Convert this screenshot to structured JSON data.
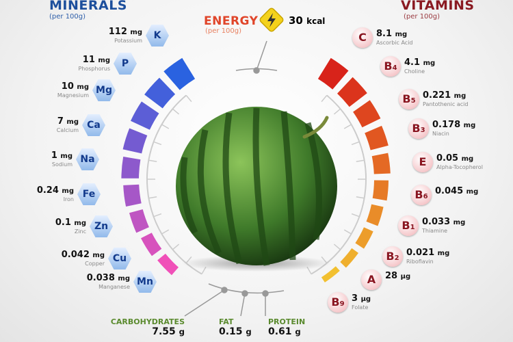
{
  "minerals": {
    "title": "MINERALS",
    "subtitle": "(per 100g)",
    "items": [
      {
        "symbol": "K",
        "value": "112",
        "unit": "mg",
        "name": "Potassium"
      },
      {
        "symbol": "P",
        "value": "11",
        "unit": "mg",
        "name": "Phosphorus"
      },
      {
        "symbol": "Mg",
        "value": "10",
        "unit": "mg",
        "name": "Magnesium"
      },
      {
        "symbol": "Ca",
        "value": "7",
        "unit": "mg",
        "name": "Calcium"
      },
      {
        "symbol": "Na",
        "value": "1",
        "unit": "mg",
        "name": "Sodium"
      },
      {
        "symbol": "Fe",
        "value": "0.24",
        "unit": "mg",
        "name": "Iron"
      },
      {
        "symbol": "Zn",
        "value": "0.1",
        "unit": "mg",
        "name": "Zinc"
      },
      {
        "symbol": "Cu",
        "value": "0.042",
        "unit": "mg",
        "name": "Copper"
      },
      {
        "symbol": "Mn",
        "value": "0.038",
        "unit": "mg",
        "name": "Manganese"
      }
    ]
  },
  "vitamins": {
    "title": "VITAMINS",
    "subtitle": "(per 100g)",
    "items": [
      {
        "letter": "C",
        "sub": "",
        "value": "8.1",
        "unit": "mg",
        "name": "Ascorbic Acid"
      },
      {
        "letter": "B",
        "sub": "4",
        "value": "4.1",
        "unit": "mg",
        "name": "Choline"
      },
      {
        "letter": "B",
        "sub": "5",
        "value": "0.221",
        "unit": "mg",
        "name": "Pantothenic acid"
      },
      {
        "letter": "B",
        "sub": "3",
        "value": "0.178",
        "unit": "mg",
        "name": "Niacin"
      },
      {
        "letter": "E",
        "sub": "",
        "value": "0.05",
        "unit": "mg",
        "name": "Alpha-Tocopherol"
      },
      {
        "letter": "B",
        "sub": "6",
        "value": "0.045",
        "unit": "mg",
        "name": ""
      },
      {
        "letter": "B",
        "sub": "1",
        "value": "0.033",
        "unit": "mg",
        "name": "Thiamine"
      },
      {
        "letter": "B",
        "sub": "2",
        "value": "0.021",
        "unit": "mg",
        "name": "Riboflavin"
      },
      {
        "letter": "A",
        "sub": "",
        "value": "28",
        "unit": "µg",
        "name": ""
      },
      {
        "letter": "B",
        "sub": "9",
        "value": "3",
        "unit": "µg",
        "name": "Folate"
      }
    ]
  },
  "energy": {
    "title": "ENERGY",
    "subtitle": "(per 100g)",
    "value": "30",
    "unit": "kcal",
    "icon": "lightning-icon"
  },
  "macros": [
    {
      "label": "CARBOHYDRATES",
      "value": "7.55",
      "unit": "g"
    },
    {
      "label": "FAT",
      "value": "0.15",
      "unit": "g"
    },
    {
      "label": "PROTEIN",
      "value": "0.61",
      "unit": "g"
    }
  ],
  "colors": {
    "minerals_title": "#1d4f9c",
    "vitamins_title": "#8a1a22",
    "energy_title": "#e0452a",
    "macro_label": "#5a8a2e",
    "bar_mineral_start": "#2a62e0",
    "bar_mineral_end": "#f050b8",
    "bar_vitamin_start": "#d8231a",
    "bar_vitamin_end": "#f2c030"
  }
}
